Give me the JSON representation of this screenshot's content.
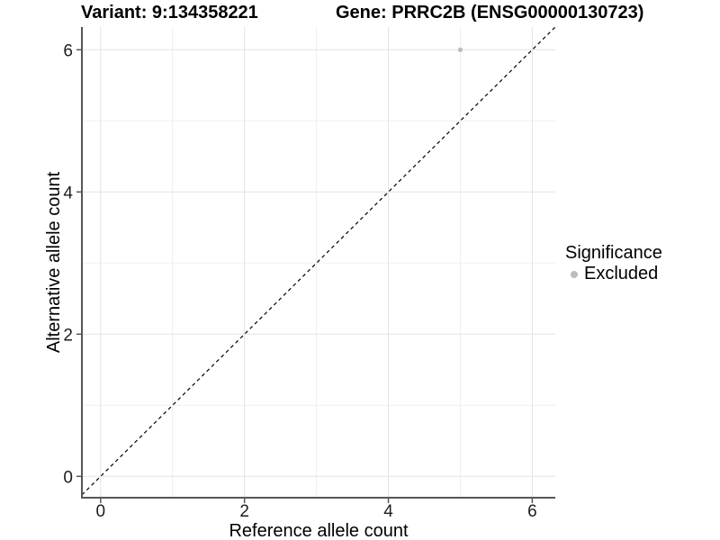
{
  "chart_data": {
    "type": "scatter",
    "title_left": "Variant: 9:134358221",
    "title_right": "Gene: PRRC2B (ENSG00000130723)",
    "xlabel": "Reference allele count",
    "ylabel": "Alternative allele count",
    "xlim": [
      -0.26,
      6.32
    ],
    "ylim": [
      -0.3,
      6.32
    ],
    "x_ticks": [
      0,
      2,
      4,
      6
    ],
    "y_ticks": [
      0,
      2,
      4,
      6
    ],
    "x_minor_ticks": [
      1,
      3,
      5
    ],
    "y_minor_ticks": [
      1,
      3,
      5
    ],
    "grid": "major+minor",
    "points": [
      {
        "x": 5,
        "y": 6,
        "series": "Excluded"
      }
    ],
    "reference_line": {
      "equation": "y = x",
      "style": "dashed",
      "color": "#000000"
    },
    "legend": {
      "position": "right",
      "title": "Significance",
      "items": [
        {
          "label": "Excluded",
          "color": "#bcbcbc",
          "marker": "circle"
        }
      ]
    },
    "colors": {
      "background": "#ffffff",
      "grid_major": "#e3e3e3",
      "grid_minor": "#efefef",
      "axis_line": "#565656",
      "point": "#bcbcbc",
      "tick_label": "#1d1d1d"
    }
  }
}
